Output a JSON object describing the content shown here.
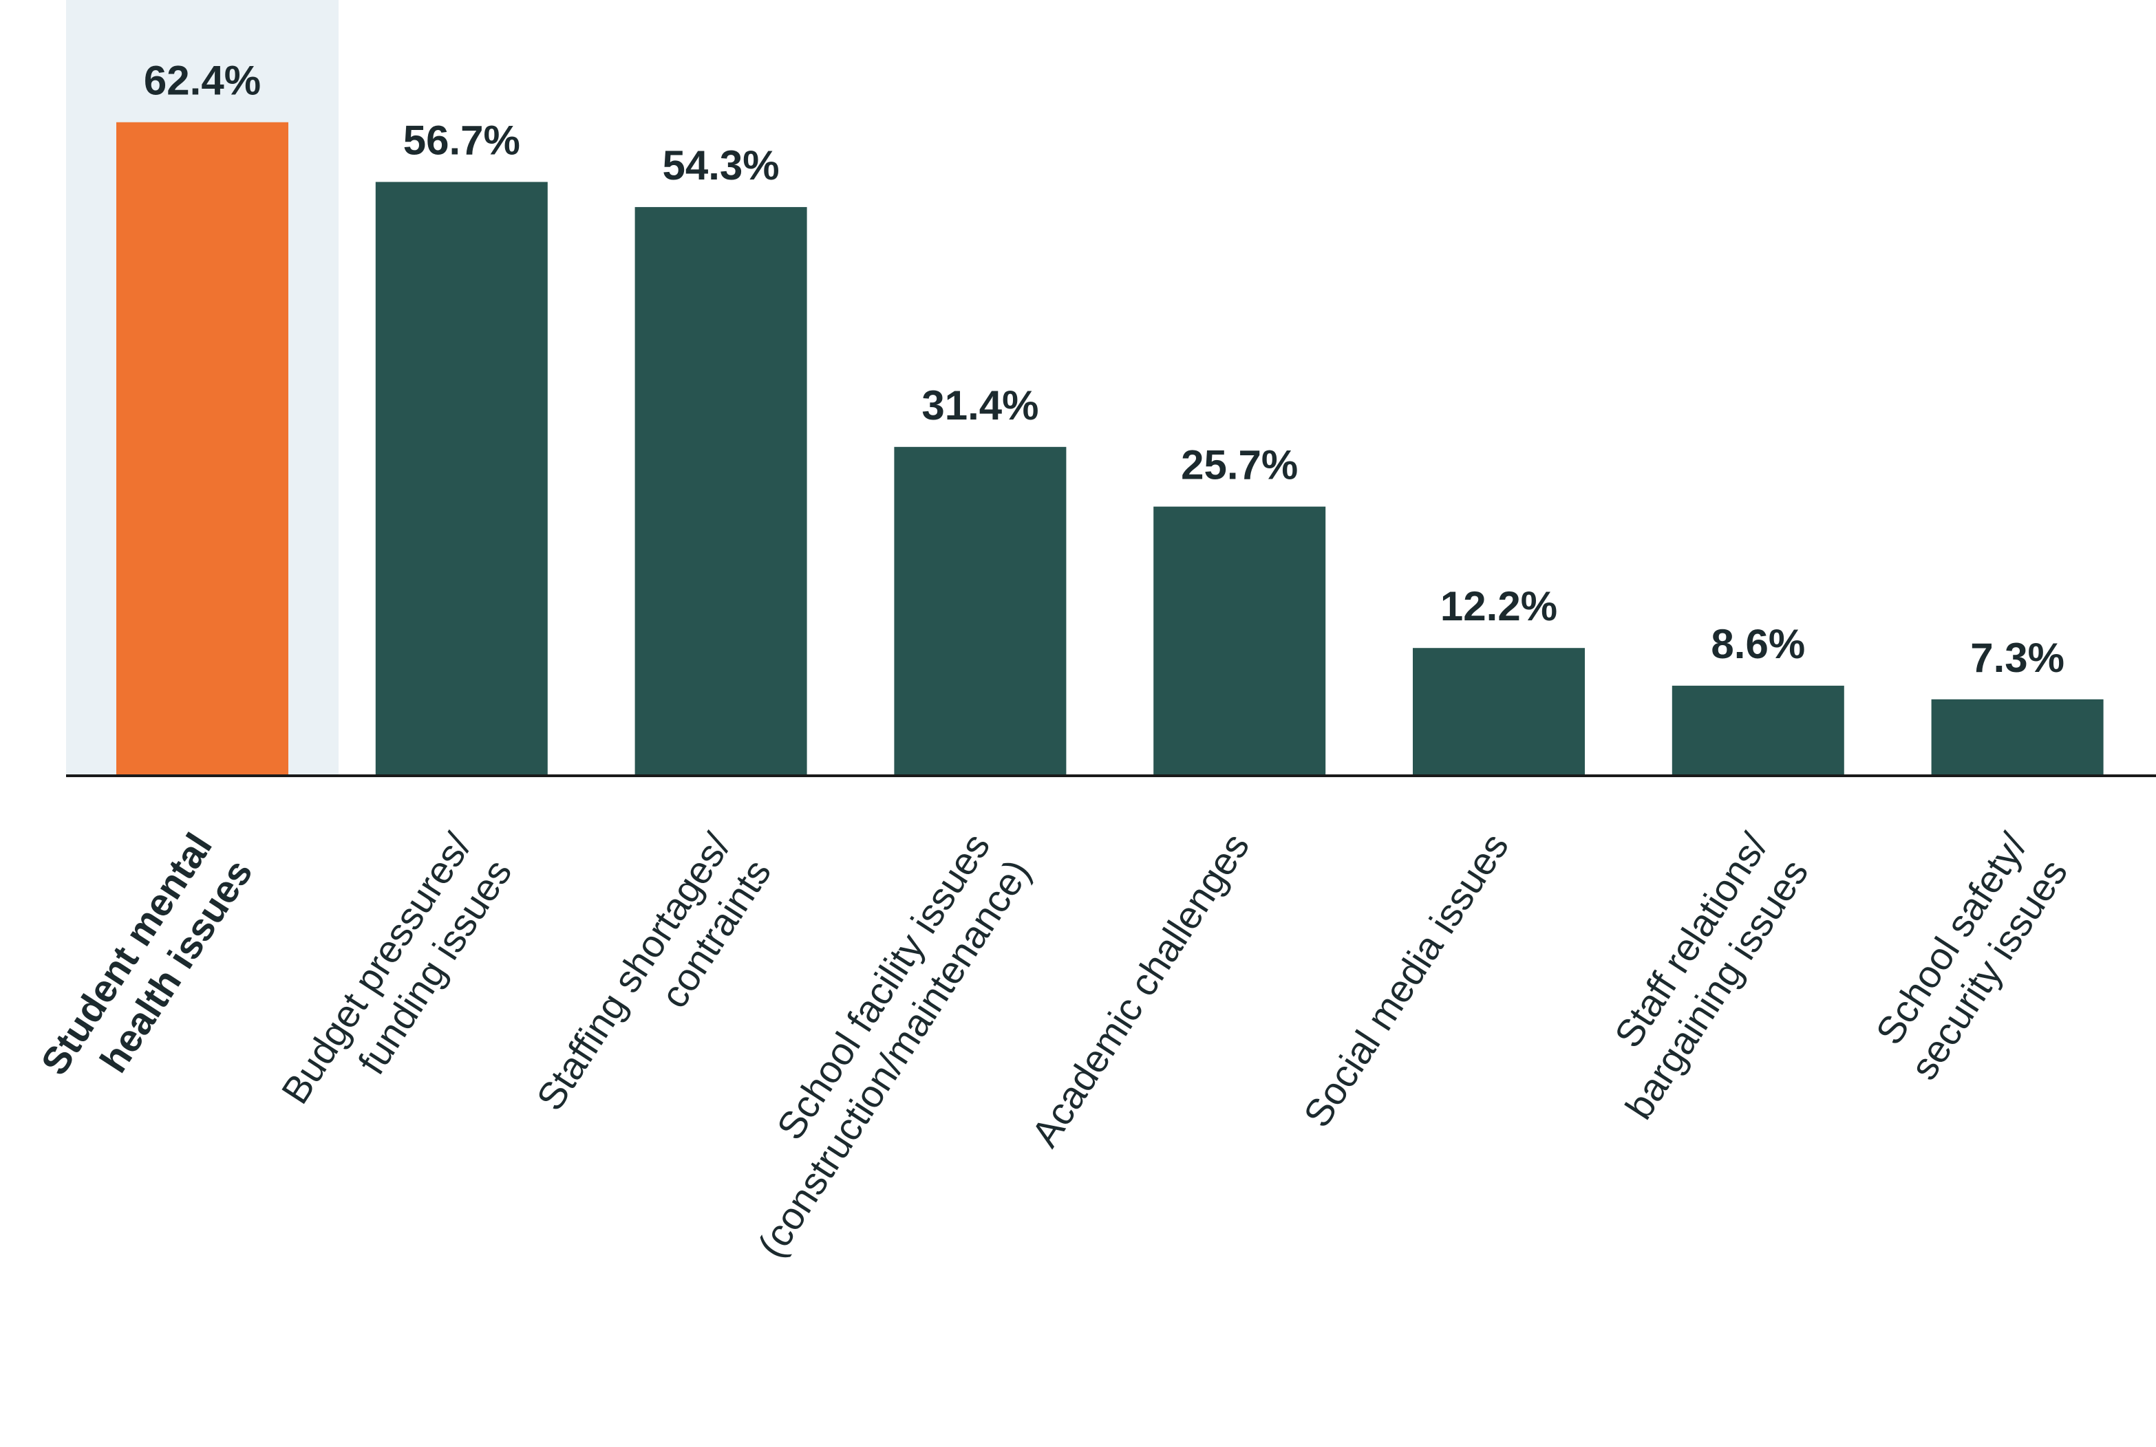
{
  "chart_data": {
    "type": "bar",
    "categories": [
      [
        "Student mental",
        "health issues"
      ],
      [
        "Budget pressures/",
        "funding issues"
      ],
      [
        "Staffing shortages/",
        "contraints"
      ],
      [
        "School facility issues",
        "(construction/maintenance)"
      ],
      [
        "Academic challenges"
      ],
      [
        "Social media issues"
      ],
      [
        "Staff relations/",
        "bargaining issues"
      ],
      [
        "School safety/",
        "security issues"
      ]
    ],
    "values": [
      62.4,
      56.7,
      54.3,
      31.4,
      25.7,
      12.2,
      8.6,
      7.3
    ],
    "value_labels": [
      "62.4%",
      "56.7%",
      "54.3%",
      "31.4%",
      "25.7%",
      "12.2%",
      "8.6%",
      "7.3%"
    ],
    "colors": [
      "#ef7330",
      "#285450",
      "#285450",
      "#285450",
      "#285450",
      "#285450",
      "#285450",
      "#285450"
    ],
    "highlight": 0,
    "highlight_color": "#eaf1f5",
    "ylim": [
      0,
      70
    ]
  }
}
